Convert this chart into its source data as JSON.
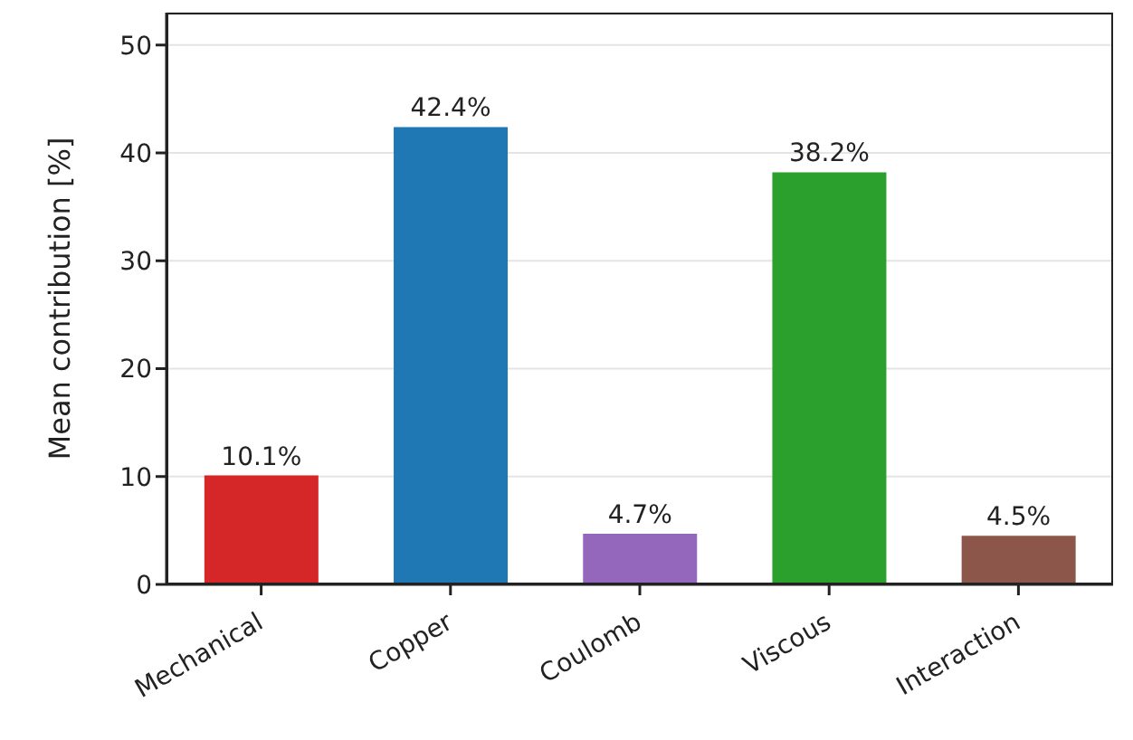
{
  "chart_data": {
    "type": "bar",
    "ylabel": "Mean contribution [%]",
    "categories": [
      "Mechanical",
      "Copper",
      "Coulomb",
      "Viscous",
      "Interaction"
    ],
    "values": [
      10.1,
      42.4,
      4.7,
      38.2,
      4.5
    ],
    "colors": [
      "#d62728",
      "#1f77b4",
      "#9467bd",
      "#2ca02c",
      "#8c564b"
    ],
    "value_labels": [
      "10.1%",
      "42.4%",
      "4.7%",
      "38.2%",
      "4.5%"
    ],
    "ylim": [
      0,
      53
    ],
    "yticks": [
      0,
      10,
      20,
      30,
      40,
      50
    ],
    "grid": "y"
  }
}
